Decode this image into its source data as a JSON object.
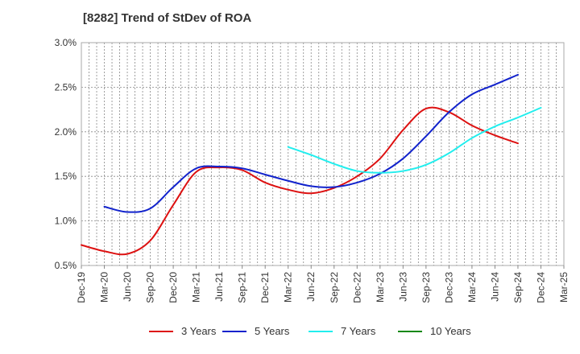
{
  "chart_data": {
    "type": "line",
    "title": "[8282]  Trend of StDev of ROA",
    "xlabel": "",
    "ylabel": "",
    "ylim": [
      0.5,
      3.0
    ],
    "y_ticks": [
      "0.5%",
      "1.0%",
      "1.5%",
      "2.0%",
      "2.5%",
      "3.0%"
    ],
    "x_ticks": [
      "Dec-19",
      "Mar-20",
      "Jun-20",
      "Sep-20",
      "Dec-20",
      "Mar-21",
      "Jun-21",
      "Sep-21",
      "Dec-21",
      "Mar-22",
      "Jun-22",
      "Sep-22",
      "Dec-22",
      "Mar-23",
      "Jun-23",
      "Sep-23",
      "Dec-23",
      "Mar-24",
      "Jun-24",
      "Sep-24",
      "Dec-24",
      "Mar-25"
    ],
    "grid": true,
    "legend_position": "bottom",
    "series": [
      {
        "name": "3 Years",
        "color": "#dd1111",
        "start_index": 0,
        "values": [
          0.73,
          0.66,
          0.63,
          0.78,
          1.18,
          1.55,
          1.6,
          1.57,
          1.43,
          1.35,
          1.31,
          1.37,
          1.5,
          1.7,
          2.02,
          2.26,
          2.22,
          2.07,
          1.96,
          1.87
        ]
      },
      {
        "name": "5 Years",
        "color": "#1122cc",
        "start_index": 1,
        "values": [
          1.16,
          1.1,
          1.14,
          1.38,
          1.59,
          1.61,
          1.59,
          1.52,
          1.45,
          1.39,
          1.38,
          1.43,
          1.53,
          1.7,
          1.95,
          2.22,
          2.42,
          2.53,
          2.64
        ]
      },
      {
        "name": "7 Years",
        "color": "#22eeee",
        "start_index": 9,
        "values": [
          1.83,
          1.74,
          1.64,
          1.56,
          1.54,
          1.56,
          1.63,
          1.76,
          1.93,
          2.06,
          2.16,
          2.27
        ]
      },
      {
        "name": "10 Years",
        "color": "#118811",
        "start_index": 0,
        "values": []
      }
    ]
  }
}
